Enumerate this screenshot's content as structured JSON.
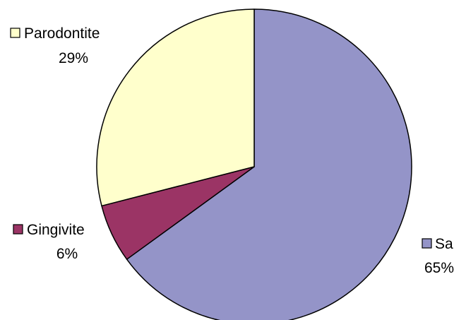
{
  "chart_data": {
    "type": "pie",
    "title": "",
    "start_angle_deg": 0,
    "direction": "clockwise",
    "slices": [
      {
        "label": "Sain",
        "value": 65,
        "value_label": "65%",
        "color": "#9494C8"
      },
      {
        "label": "Gingivite",
        "value": 6,
        "value_label": "6%",
        "color": "#9B3465"
      },
      {
        "label": "Parodontite",
        "value": 29,
        "value_label": "29%",
        "color": "#FFFFCC"
      }
    ],
    "edge_color": "#000000",
    "legend": "labels beside slices"
  }
}
